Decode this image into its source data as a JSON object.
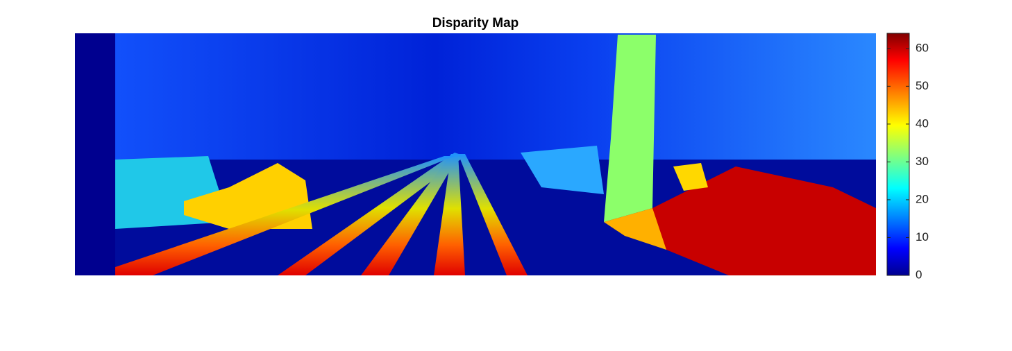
{
  "chart_data": {
    "type": "image",
    "title": "Disparity Map",
    "colormap": "jet",
    "clim": [
      0,
      64
    ],
    "colorbar_ticks": [
      0,
      10,
      20,
      30,
      40,
      50,
      60
    ]
  }
}
